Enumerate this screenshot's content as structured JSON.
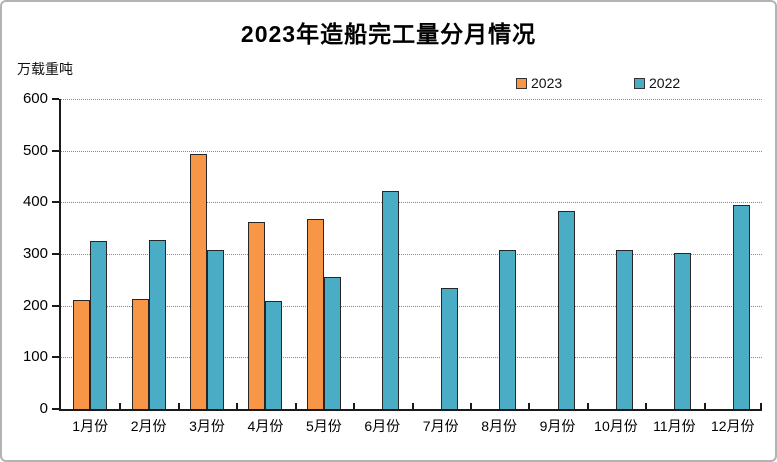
{
  "chart_data": {
    "type": "bar",
    "title": "2023年造船完工量分月情况",
    "ylabel": "万载重吨",
    "xlabel": "",
    "categories": [
      "1月份",
      "2月份",
      "3月份",
      "4月份",
      "5月份",
      "6月份",
      "7月份",
      "8月份",
      "9月份",
      "10月份",
      "11月份",
      "12月份"
    ],
    "series": [
      {
        "name": "2023",
        "color": "#F79646",
        "values": [
          211,
          212,
          493,
          362,
          367,
          null,
          null,
          null,
          null,
          null,
          null,
          null
        ]
      },
      {
        "name": "2022",
        "color": "#4BACC6",
        "values": [
          326,
          328,
          307,
          210,
          256,
          421,
          234,
          308,
          384,
          307,
          302,
          394
        ]
      }
    ],
    "ylim": [
      0,
      600
    ],
    "yticks": [
      0,
      100,
      200,
      300,
      400,
      500,
      600
    ],
    "grid": "horizontal-dotted",
    "legend_position": "top-right",
    "colors": {
      "axis": "#1a1a1a",
      "gridline": "#8a8a8a",
      "bar_border": "#262626",
      "frame_border": "#b3b3b3"
    }
  }
}
